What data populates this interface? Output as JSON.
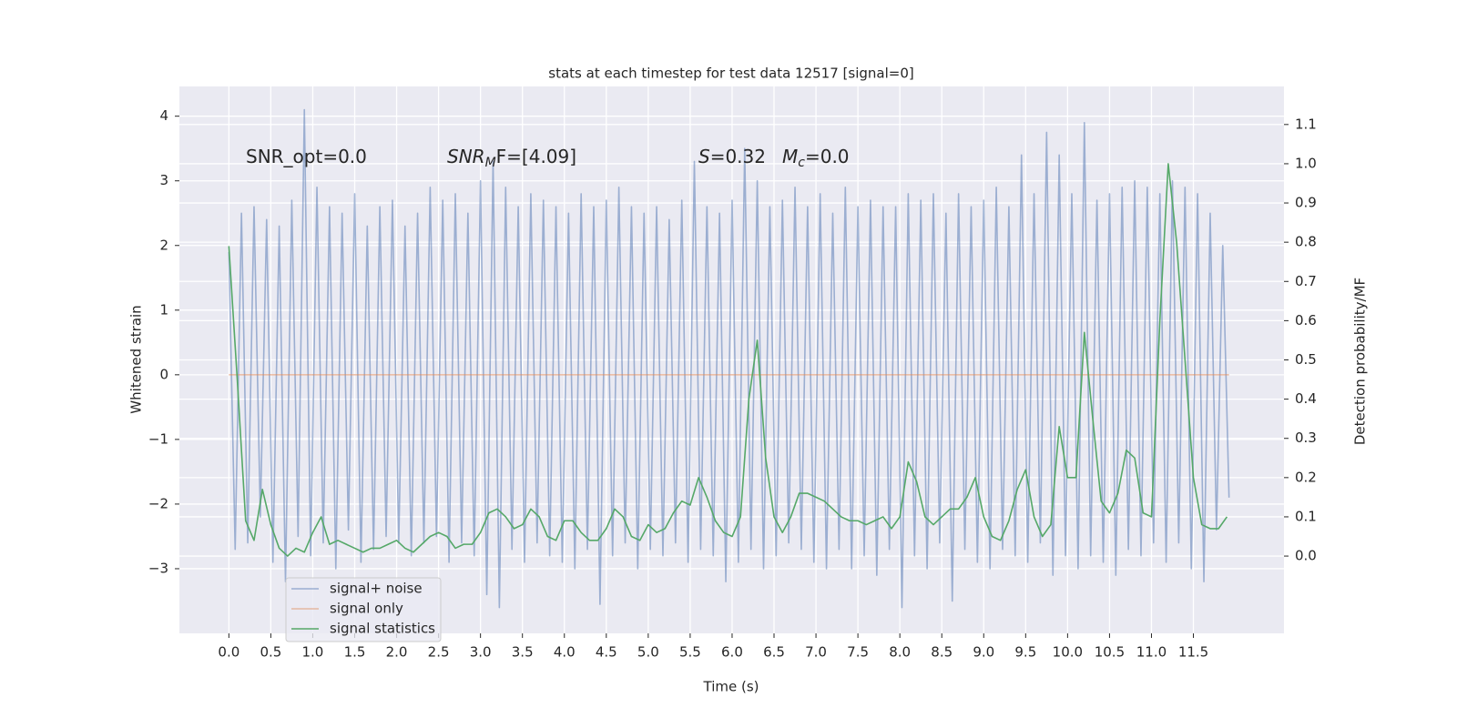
{
  "chart_data": {
    "type": "line",
    "title": "stats at each timestep for test data 12517 [signal=0]",
    "xlabel": "Time (s)",
    "ylabel": "Whitened strain",
    "y2label": "Detection probability/MF",
    "xlim": [
      -0.59,
      12.58
    ],
    "ylim": [
      -4.0,
      4.46
    ],
    "y2lim": [
      -0.197,
      1.197
    ],
    "xticks": [
      {
        "value": 0,
        "label": "0.0"
      },
      0.5,
      {
        "value": 1,
        "label": "1.0"
      },
      1.5,
      {
        "value": 2,
        "label": "2.0"
      },
      2.5,
      {
        "value": 3,
        "label": "3.0"
      },
      3.5,
      {
        "value": 4,
        "label": "4.0"
      },
      4.5,
      {
        "value": 5,
        "label": "5.0"
      },
      5.5,
      {
        "value": 6,
        "label": "6.0"
      },
      6.5,
      {
        "value": 7,
        "label": "7.0"
      },
      7.5,
      {
        "value": 8,
        "label": "8.0"
      },
      8.5,
      {
        "value": 9,
        "label": "9.0"
      },
      9.5,
      {
        "value": 10,
        "label": "10.0"
      },
      10.5,
      {
        "value": 11,
        "label": "11.0"
      },
      11.5
    ],
    "yticks": [
      {
        "value": -3,
        "label": "−3"
      },
      {
        "value": -2,
        "label": "−2"
      },
      {
        "value": -1,
        "label": "−1"
      },
      0,
      1,
      2,
      3,
      4
    ],
    "y2ticks": [
      {
        "value": 0,
        "label": "0.0"
      },
      0.1,
      0.2,
      0.3,
      0.4,
      0.5,
      0.6,
      0.7,
      0.8,
      0.9,
      {
        "value": 1,
        "label": "1.0"
      },
      1.1
    ],
    "grid": true,
    "legend": "lower left",
    "annotations": [
      [
        {
          "text": "SNR_opt=0.0"
        }
      ],
      [
        {
          "text": "SNR",
          "style": "italic"
        },
        {
          "text": "M",
          "style": "sub"
        },
        {
          "text": "F=[4.09]"
        }
      ],
      [
        {
          "text": "S",
          "style": "italic"
        },
        {
          "text": "=0.32"
        }
      ],
      [
        {
          "text": "M",
          "style": "italic"
        },
        {
          "text": "c",
          "style": "sub"
        },
        {
          "text": "=0.0"
        }
      ]
    ],
    "series": [
      {
        "name": "signal+ noise",
        "color": "#4c72b0",
        "opacity": 0.5,
        "x": [
          0,
          0.075,
          0.15,
          0.225,
          0.3,
          0.375,
          0.45,
          0.525,
          0.6,
          0.675,
          0.75,
          0.825,
          0.9,
          0.975,
          1.05,
          1.125,
          1.2,
          1.275,
          1.35,
          1.425,
          1.5,
          1.575,
          1.65,
          1.725,
          1.8,
          1.875,
          1.95,
          2.025,
          2.1,
          2.175,
          2.25,
          2.325,
          2.4,
          2.475,
          2.55,
          2.625,
          2.7,
          2.775,
          2.85,
          2.925,
          3.0,
          3.075,
          3.15,
          3.225,
          3.3,
          3.375,
          3.45,
          3.525,
          3.6,
          3.675,
          3.75,
          3.825,
          3.9,
          3.975,
          4.05,
          4.125,
          4.2,
          4.275,
          4.35,
          4.425,
          4.5,
          4.575,
          4.65,
          4.725,
          4.8,
          4.875,
          4.95,
          5.025,
          5.1,
          5.175,
          5.25,
          5.325,
          5.4,
          5.475,
          5.55,
          5.625,
          5.7,
          5.775,
          5.85,
          5.925,
          6.0,
          6.075,
          6.15,
          6.225,
          6.3,
          6.375,
          6.45,
          6.525,
          6.6,
          6.675,
          6.75,
          6.825,
          6.9,
          6.975,
          7.05,
          7.125,
          7.2,
          7.275,
          7.35,
          7.425,
          7.5,
          7.575,
          7.65,
          7.725,
          7.8,
          7.875,
          7.95,
          8.025,
          8.1,
          8.175,
          8.25,
          8.325,
          8.4,
          8.475,
          8.55,
          8.625,
          8.7,
          8.775,
          8.85,
          8.925,
          9.0,
          9.075,
          9.15,
          9.225,
          9.3,
          9.375,
          9.45,
          9.525,
          9.6,
          9.675,
          9.75,
          9.825,
          9.9,
          9.975,
          10.05,
          10.125,
          10.2,
          10.275,
          10.35,
          10.425,
          10.5,
          10.575,
          10.65,
          10.725,
          10.8,
          10.875,
          10.95,
          11.025,
          11.1,
          11.175,
          11.25,
          11.325,
          11.4,
          11.475,
          11.55,
          11.625,
          11.7,
          11.775,
          11.85,
          11.925
        ],
        "values": [
          1.9,
          -2.7,
          2.5,
          -2.6,
          2.6,
          -2.2,
          2.4,
          -2.9,
          2.3,
          -3.2,
          2.7,
          -2.5,
          4.1,
          -2.8,
          2.9,
          -2.6,
          2.6,
          -3.0,
          2.5,
          -2.4,
          2.8,
          -2.9,
          2.3,
          -2.7,
          2.6,
          -2.5,
          2.7,
          -2.6,
          2.3,
          -2.8,
          2.5,
          -2.6,
          2.9,
          -2.5,
          2.7,
          -2.9,
          2.8,
          -2.6,
          2.5,
          -2.8,
          3.0,
          -3.4,
          3.3,
          -3.6,
          2.9,
          -2.7,
          2.6,
          -2.9,
          2.8,
          -2.6,
          2.7,
          -2.8,
          2.6,
          -2.9,
          2.5,
          -3.0,
          2.8,
          -2.7,
          2.6,
          -3.55,
          2.7,
          -2.8,
          2.9,
          -2.6,
          2.6,
          -3.0,
          2.5,
          -2.7,
          2.6,
          -2.8,
          2.4,
          -2.6,
          2.7,
          -2.9,
          3.3,
          -2.7,
          2.6,
          -2.8,
          2.5,
          -3.2,
          2.7,
          -2.9,
          3.5,
          -2.7,
          3.0,
          -3.0,
          2.6,
          -2.8,
          2.7,
          -2.6,
          2.9,
          -2.7,
          2.6,
          -2.9,
          2.8,
          -3.0,
          2.5,
          -2.7,
          2.9,
          -3.0,
          2.6,
          -2.8,
          2.7,
          -3.1,
          2.6,
          -2.7,
          2.6,
          -3.6,
          2.8,
          -2.8,
          2.7,
          -3.0,
          2.8,
          -2.6,
          2.5,
          -3.5,
          2.8,
          -2.7,
          2.6,
          -2.9,
          2.7,
          -3.0,
          2.9,
          -2.7,
          2.6,
          -2.8,
          3.4,
          -2.9,
          2.8,
          -2.6,
          3.75,
          -3.1,
          3.4,
          -2.8,
          2.8,
          -3.0,
          3.9,
          -2.8,
          2.7,
          -2.9,
          2.8,
          -3.1,
          2.9,
          -2.7,
          3.0,
          -2.8,
          2.9,
          -2.6,
          2.8,
          -2.9,
          3.0,
          -2.6,
          2.9,
          -3.0,
          2.8,
          -3.2,
          2.5,
          -2.4,
          2.0,
          -1.9
        ]
      },
      {
        "name": "signal only",
        "color": "#dd8452",
        "opacity": 0.5,
        "x": [
          0,
          11.925
        ],
        "values": [
          0,
          0
        ]
      },
      {
        "name": "signal statistics",
        "color": "#55a868",
        "axis": "y2",
        "x": [
          0,
          0.1,
          0.2,
          0.3,
          0.4,
          0.5,
          0.6,
          0.7,
          0.8,
          0.9,
          1.0,
          1.1,
          1.2,
          1.3,
          1.4,
          1.5,
          1.6,
          1.7,
          1.8,
          1.9,
          2.0,
          2.1,
          2.2,
          2.3,
          2.4,
          2.5,
          2.6,
          2.7,
          2.8,
          2.9,
          3.0,
          3.1,
          3.2,
          3.3,
          3.4,
          3.5,
          3.6,
          3.7,
          3.8,
          3.9,
          4.0,
          4.1,
          4.2,
          4.3,
          4.4,
          4.5,
          4.6,
          4.7,
          4.8,
          4.9,
          5.0,
          5.1,
          5.2,
          5.3,
          5.4,
          5.5,
          5.6,
          5.7,
          5.8,
          5.9,
          6.0,
          6.1,
          6.2,
          6.3,
          6.4,
          6.5,
          6.6,
          6.7,
          6.8,
          6.9,
          7.0,
          7.1,
          7.2,
          7.3,
          7.4,
          7.5,
          7.6,
          7.7,
          7.8,
          7.9,
          8.0,
          8.1,
          8.2,
          8.3,
          8.4,
          8.5,
          8.6,
          8.7,
          8.8,
          8.9,
          9.0,
          9.1,
          9.2,
          9.3,
          9.4,
          9.5,
          9.6,
          9.7,
          9.8,
          9.9,
          10.0,
          10.1,
          10.2,
          10.3,
          10.4,
          10.5,
          10.6,
          10.7,
          10.8,
          10.9,
          11.0,
          11.1,
          11.2,
          11.3,
          11.4,
          11.5,
          11.6,
          11.7,
          11.8,
          11.9
        ],
        "values": [
          0.79,
          0.45,
          0.09,
          0.04,
          0.17,
          0.08,
          0.02,
          0.0,
          0.02,
          0.01,
          0.06,
          0.1,
          0.03,
          0.04,
          0.03,
          0.02,
          0.01,
          0.02,
          0.02,
          0.03,
          0.04,
          0.02,
          0.01,
          0.03,
          0.05,
          0.06,
          0.05,
          0.02,
          0.03,
          0.03,
          0.06,
          0.11,
          0.12,
          0.1,
          0.07,
          0.08,
          0.12,
          0.1,
          0.05,
          0.04,
          0.09,
          0.09,
          0.06,
          0.04,
          0.04,
          0.07,
          0.12,
          0.1,
          0.05,
          0.04,
          0.08,
          0.06,
          0.07,
          0.11,
          0.14,
          0.13,
          0.2,
          0.15,
          0.09,
          0.06,
          0.05,
          0.1,
          0.4,
          0.55,
          0.25,
          0.1,
          0.06,
          0.1,
          0.16,
          0.16,
          0.15,
          0.14,
          0.12,
          0.1,
          0.09,
          0.09,
          0.08,
          0.09,
          0.1,
          0.07,
          0.1,
          0.24,
          0.19,
          0.1,
          0.08,
          0.1,
          0.12,
          0.12,
          0.15,
          0.2,
          0.1,
          0.05,
          0.04,
          0.09,
          0.17,
          0.22,
          0.1,
          0.05,
          0.08,
          0.33,
          0.2,
          0.2,
          0.57,
          0.35,
          0.14,
          0.11,
          0.16,
          0.27,
          0.25,
          0.11,
          0.1,
          0.6,
          1.0,
          0.8,
          0.5,
          0.2,
          0.08,
          0.07,
          0.07,
          0.1
        ]
      }
    ]
  }
}
